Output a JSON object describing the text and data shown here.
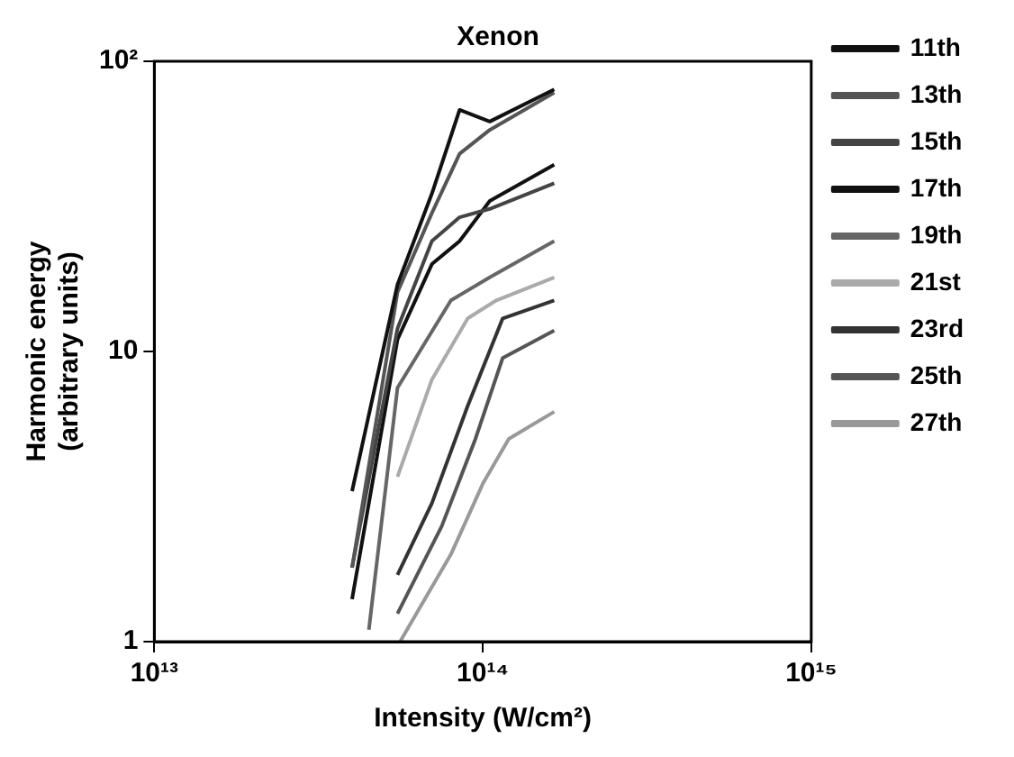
{
  "chart_data": {
    "type": "line",
    "title": "Xenon",
    "xlabel": "Intensity (W/cm²)",
    "ylabel": "Harmonic energy (arbitrary units)",
    "log": "xy",
    "grid": false,
    "legend": "top right",
    "marker": "none",
    "xlim": [
      10000000000000.0,
      1000000000000000.0
    ],
    "xticks": [
      {
        "value": 10000000000000.0,
        "label": "10¹³"
      },
      {
        "value": 100000000000000.0,
        "label": "10¹⁴"
      },
      {
        "value": 1000000000000000.0,
        "label": "10¹⁵"
      }
    ],
    "ylim": [
      1,
      100
    ],
    "yticks": [
      1,
      10,
      {
        "value": 100,
        "label": "10²"
      }
    ],
    "series": [
      {
        "name": "11th",
        "color": "#111111",
        "x": [
          40000000000000.0,
          55000000000000.0,
          70000000000000.0,
          85000000000000.0,
          105000000000000.0,
          165000000000000.0
        ],
        "values": [
          3.3,
          17,
          35,
          68,
          62,
          80
        ]
      },
      {
        "name": "13th",
        "color": "#555555",
        "x": [
          40000000000000.0,
          55000000000000.0,
          70000000000000.0,
          85000000000000.0,
          105000000000000.0,
          165000000000000.0
        ],
        "values": [
          1.8,
          16,
          30,
          48,
          58,
          78
        ]
      },
      {
        "name": "15th",
        "color": "#444444",
        "x": [
          40000000000000.0,
          55000000000000.0,
          70000000000000.0,
          85000000000000.0,
          105000000000000.0,
          165000000000000.0
        ],
        "values": [
          1.8,
          12,
          24,
          29,
          31,
          38
        ]
      },
      {
        "name": "17th",
        "color": "#111111",
        "x": [
          40000000000000.0,
          55000000000000.0,
          70000000000000.0,
          85000000000000.0,
          105000000000000.0,
          165000000000000.0
        ],
        "values": [
          1.4,
          11,
          20,
          24,
          33,
          44
        ]
      },
      {
        "name": "19th",
        "color": "#666666",
        "x": [
          45000000000000.0,
          55000000000000.0,
          80000000000000.0,
          105000000000000.0,
          165000000000000.0
        ],
        "values": [
          1.1,
          7.5,
          15,
          18,
          24
        ]
      },
      {
        "name": "21st",
        "color": "#aaaaaa",
        "x": [
          55000000000000.0,
          70000000000000.0,
          90000000000000.0,
          110000000000000.0,
          165000000000000.0
        ],
        "values": [
          3.7,
          8,
          13,
          15,
          18
        ]
      },
      {
        "name": "23rd",
        "color": "#333333",
        "x": [
          55000000000000.0,
          70000000000000.0,
          90000000000000.0,
          115000000000000.0,
          165000000000000.0
        ],
        "values": [
          1.7,
          3,
          6.5,
          13,
          15
        ]
      },
      {
        "name": "25th",
        "color": "#555555",
        "x": [
          55000000000000.0,
          75000000000000.0,
          95000000000000.0,
          115000000000000.0,
          165000000000000.0
        ],
        "values": [
          1.25,
          2.5,
          5,
          9.5,
          11.8
        ]
      },
      {
        "name": "27th",
        "color": "#999999",
        "x": [
          56000000000000.0,
          80000000000000.0,
          100000000000000.0,
          120000000000000.0,
          165000000000000.0
        ],
        "values": [
          1.0,
          2,
          3.5,
          5,
          6.2
        ]
      }
    ]
  }
}
